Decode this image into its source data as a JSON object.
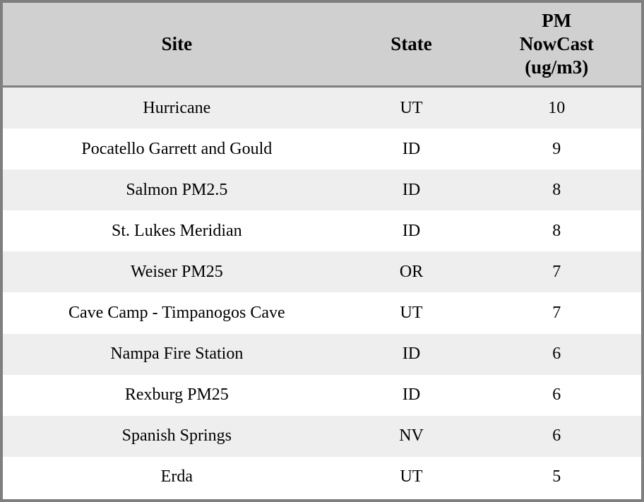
{
  "table": {
    "columns": [
      {
        "key": "site",
        "label": "Site"
      },
      {
        "key": "state",
        "label": "State"
      },
      {
        "key": "value",
        "label": "PM\nNowCast\n(ug/m3)"
      }
    ],
    "rows": [
      {
        "site": "Hurricane",
        "state": "UT",
        "value": "10"
      },
      {
        "site": "Pocatello Garrett and Gould",
        "state": "ID",
        "value": "9"
      },
      {
        "site": "Salmon PM2.5",
        "state": "ID",
        "value": "8"
      },
      {
        "site": "St. Lukes Meridian",
        "state": "ID",
        "value": "8"
      },
      {
        "site": "Weiser PM25",
        "state": "OR",
        "value": "7"
      },
      {
        "site": "Cave Camp - Timpanogos Cave",
        "state": "UT",
        "value": "7"
      },
      {
        "site": "Nampa Fire Station",
        "state": "ID",
        "value": "6"
      },
      {
        "site": "Rexburg PM25",
        "state": "ID",
        "value": "6"
      },
      {
        "site": "Spanish Springs",
        "state": "NV",
        "value": "6"
      },
      {
        "site": "Erda",
        "state": "UT",
        "value": "5"
      }
    ],
    "colors": {
      "header_bg": "#d0d0d0",
      "border": "#7f7f7f",
      "row_odd_bg": "#eeeeee",
      "row_even_bg": "#ffffff",
      "text": "#000000"
    }
  },
  "chart_data": {
    "type": "table",
    "title": "",
    "columns": [
      "Site",
      "State",
      "PM NowCast (ug/m3)"
    ],
    "rows": [
      [
        "Hurricane",
        "UT",
        10
      ],
      [
        "Pocatello Garrett and Gould",
        "ID",
        9
      ],
      [
        "Salmon PM2.5",
        "ID",
        8
      ],
      [
        "St. Lukes Meridian",
        "ID",
        8
      ],
      [
        "Weiser PM25",
        "OR",
        7
      ],
      [
        "Cave Camp - Timpanogos Cave",
        "UT",
        7
      ],
      [
        "Nampa Fire Station",
        "ID",
        6
      ],
      [
        "Rexburg PM25",
        "ID",
        6
      ],
      [
        "Spanish Springs",
        "NV",
        6
      ],
      [
        "Erda",
        "UT",
        5
      ]
    ]
  }
}
